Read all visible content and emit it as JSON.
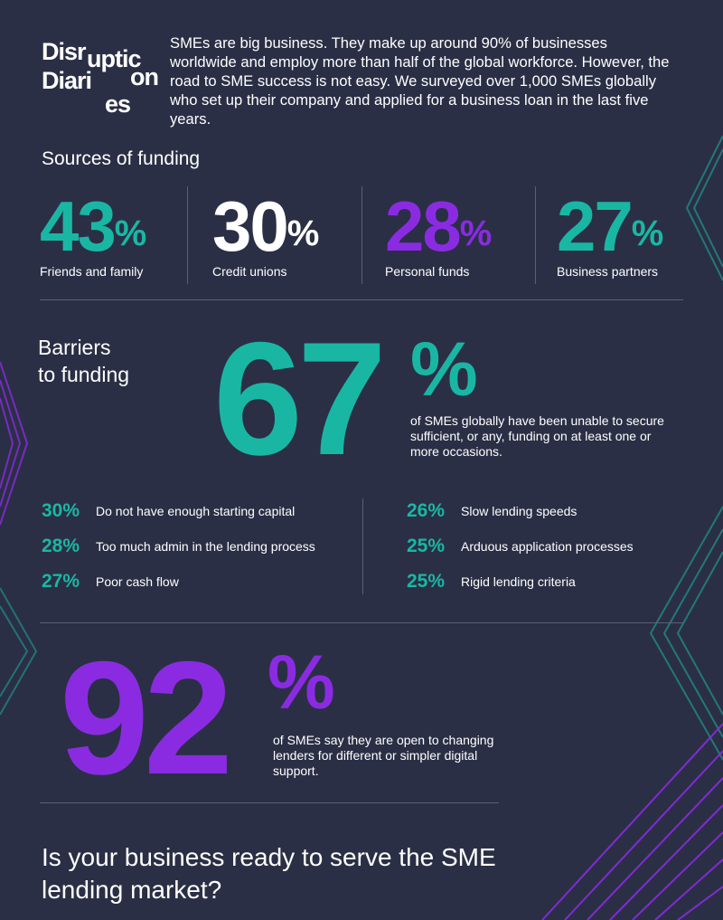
{
  "brand": {
    "logo_line1": "Disr",
    "logo_line1b": "uptic",
    "logo_line2": "Diari",
    "logo_line2b": "on",
    "logo_line3": "es"
  },
  "intro": "SMEs are big business. They make up around 90% of businesses worldwide and employ more than half of the global workforce. However, the road to SME success is not easy. We surveyed over 1,000 SMEs globally who set up their company and applied for a business loan in the last five years.",
  "sources": {
    "title": "Sources of funding",
    "items": [
      {
        "value": "43",
        "unit": "%",
        "label": "Friends and family",
        "color": "#19b7a3"
      },
      {
        "value": "30",
        "unit": "%",
        "label": "Credit unions",
        "color": "#ffffff"
      },
      {
        "value": "28",
        "unit": "%",
        "label": "Personal funds",
        "color": "#8a2be2"
      },
      {
        "value": "27",
        "unit": "%",
        "label": "Business partners",
        "color": "#19b7a3"
      }
    ]
  },
  "barriers": {
    "title_line1": "Barriers",
    "title_line2": "to funding",
    "headline_value": "67",
    "headline_unit": "%",
    "headline_text": "of SMEs globally have been unable to secure sufficient, or any, funding on at least one or more occasions.",
    "left": [
      {
        "value": "30%",
        "label": "Do not have enough starting capital"
      },
      {
        "value": "28%",
        "label": "Too much admin in the lending process"
      },
      {
        "value": "27%",
        "label": "Poor cash flow"
      }
    ],
    "right": [
      {
        "value": "26%",
        "label": "Slow lending speeds"
      },
      {
        "value": "25%",
        "label": "Arduous application processes"
      },
      {
        "value": "25%",
        "label": "Rigid lending criteria"
      }
    ]
  },
  "switching": {
    "value": "92",
    "unit": "%",
    "text": "of SMEs say they are open to changing lenders for different or simpler digital support."
  },
  "cta": "Is your business ready to serve the SME lending market?",
  "colors": {
    "background": "#2b2f45",
    "teal": "#19b7a3",
    "purple": "#8a2be2",
    "white": "#ffffff"
  }
}
